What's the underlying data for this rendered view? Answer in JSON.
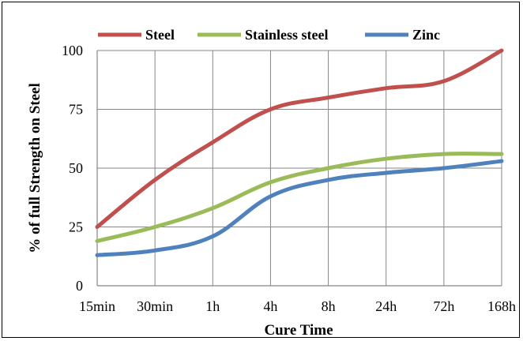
{
  "chart_data": {
    "type": "line",
    "title": "",
    "xlabel": "Cure Time",
    "ylabel": "% of full  Strength on Steel",
    "categories": [
      "15min",
      "30min",
      "1h",
      "4h",
      "8h",
      "24h",
      "72h",
      "168h"
    ],
    "y_ticks": [
      "0",
      "25",
      "50",
      "75",
      "100"
    ],
    "ylim": [
      0,
      100
    ],
    "grid": true,
    "legend_position": "top",
    "series": [
      {
        "name": "Steel",
        "color": "#c0504d",
        "values": [
          25,
          45,
          61,
          75,
          80,
          84,
          87,
          100
        ]
      },
      {
        "name": "Stainless steel",
        "color": "#9bbb59",
        "values": [
          19,
          25,
          33,
          44,
          50,
          54,
          56,
          56
        ]
      },
      {
        "name": "Zinc",
        "color": "#4f81bd",
        "values": [
          13,
          15,
          21,
          38,
          45,
          48,
          50,
          53
        ]
      }
    ]
  }
}
